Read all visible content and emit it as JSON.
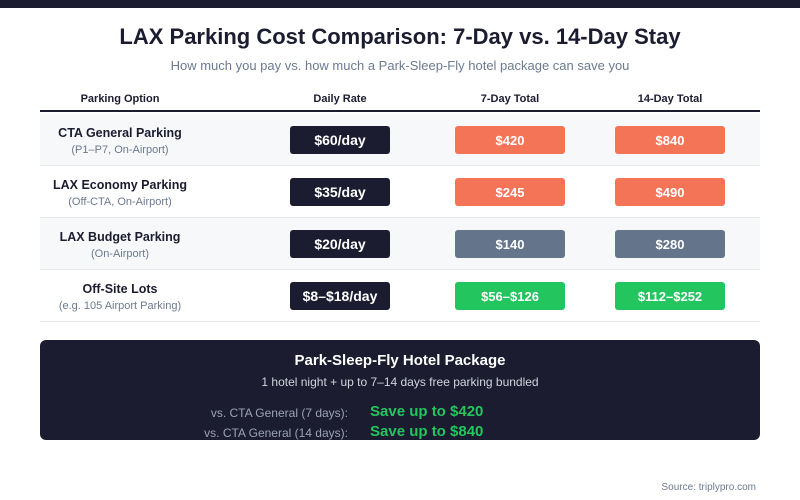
{
  "title": "LAX Parking Cost Comparison: 7-Day vs. 14-Day Stay",
  "subtitle": "How much you pay vs. how much a Park-Sleep-Fly hotel package can save you",
  "columns": [
    "Parking Option",
    "Daily Rate",
    "7-Day Total",
    "14-Day Total"
  ],
  "colors": {
    "dark": "#1b1c30",
    "high": "#f47458",
    "mid": "#64748b",
    "low": "#22c55e"
  },
  "rows": [
    {
      "name": "CTA General Parking",
      "sub": "(P1–P7, On-Airport)",
      "rate": "$60/day",
      "t7": "$420",
      "t14": "$840",
      "level": "high"
    },
    {
      "name": "LAX Economy Parking",
      "sub": "(Off-CTA, On-Airport)",
      "rate": "$35/day",
      "t7": "$245",
      "t14": "$490",
      "level": "high"
    },
    {
      "name": "LAX Budget Parking",
      "sub": "(On-Airport)",
      "rate": "$20/day",
      "t7": "$140",
      "t14": "$280",
      "level": "mid"
    },
    {
      "name": "Off-Site Lots",
      "sub": "(e.g. 105 Airport Parking)",
      "rate": "$8–$18/day",
      "t7": "$56–$126",
      "t14": "$112–$252",
      "level": "low"
    }
  ],
  "package": {
    "title": "Park-Sleep-Fly Hotel Package",
    "subtitle": "1 hotel night + up to 7–14 days free parking bundled",
    "savings": [
      {
        "label": "vs. CTA General (7 days):",
        "value": "Save up to $420"
      },
      {
        "label": "vs. CTA General (14 days):",
        "value": "Save up to $840"
      }
    ]
  },
  "source": "Source: triplypro.com"
}
